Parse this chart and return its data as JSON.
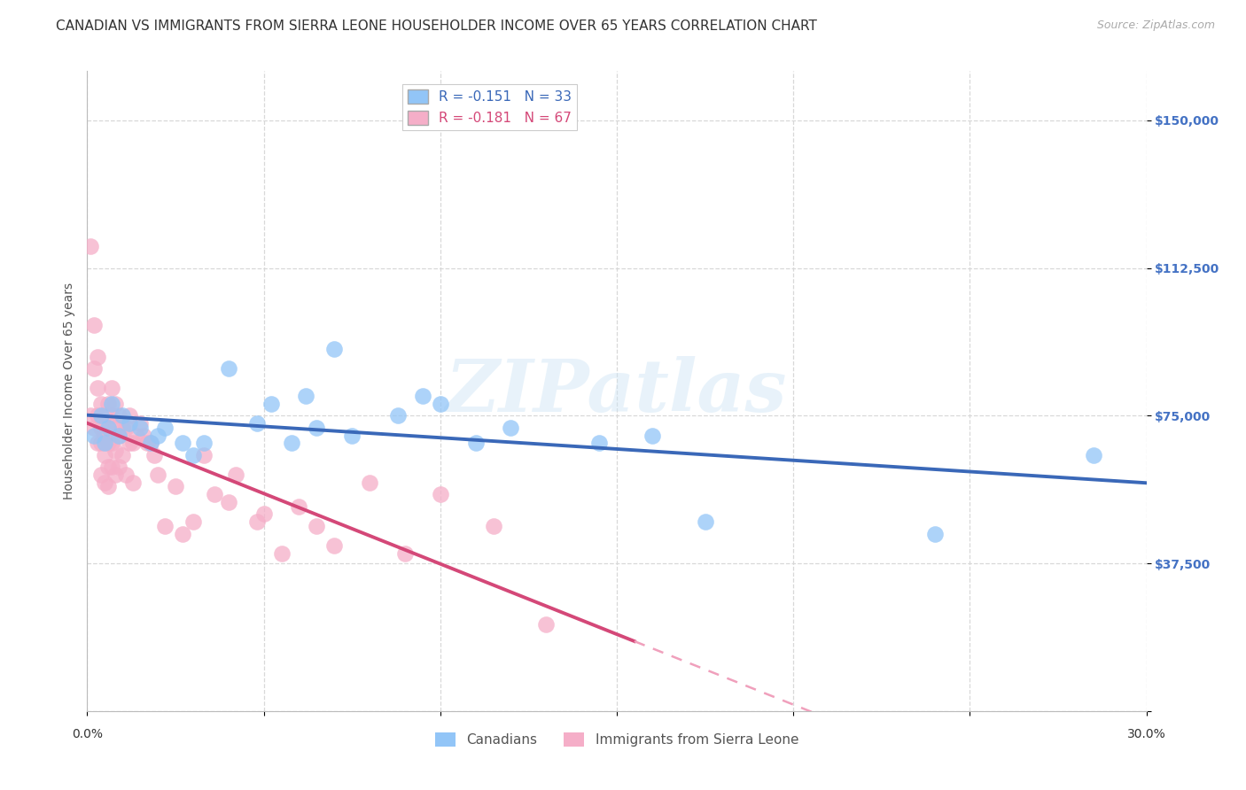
{
  "title": "CANADIAN VS IMMIGRANTS FROM SIERRA LEONE HOUSEHOLDER INCOME OVER 65 YEARS CORRELATION CHART",
  "source": "Source: ZipAtlas.com",
  "ylabel": "Householder Income Over 65 years",
  "xlim": [
    0.0,
    0.3
  ],
  "ylim": [
    0,
    162500
  ],
  "yticks": [
    0,
    37500,
    75000,
    112500,
    150000
  ],
  "ytick_labels": [
    "",
    "$37,500",
    "$75,000",
    "$112,500",
    "$150,000"
  ],
  "background_color": "#ffffff",
  "grid_color": "#d8d8d8",
  "canadians_color": "#92c5f7",
  "sierra_leone_color": "#f5aec8",
  "trend_canadian_color": "#3a68b8",
  "trend_sierra_leone_solid_color": "#d44878",
  "trend_sierra_leone_dashed_color": "#f0a0bc",
  "R_canadian": -0.151,
  "N_canadian": 33,
  "R_sierra_leone": -0.181,
  "N_sierra_leone": 67,
  "canadians_x": [
    0.002,
    0.004,
    0.005,
    0.006,
    0.007,
    0.009,
    0.01,
    0.012,
    0.015,
    0.018,
    0.02,
    0.022,
    0.027,
    0.03,
    0.033,
    0.04,
    0.048,
    0.052,
    0.058,
    0.062,
    0.065,
    0.07,
    0.075,
    0.088,
    0.095,
    0.1,
    0.11,
    0.12,
    0.145,
    0.16,
    0.175,
    0.24,
    0.285
  ],
  "canadians_y": [
    70000,
    75000,
    68000,
    72000,
    78000,
    70000,
    75000,
    73000,
    72000,
    68000,
    70000,
    72000,
    68000,
    65000,
    68000,
    87000,
    73000,
    78000,
    68000,
    80000,
    72000,
    92000,
    70000,
    75000,
    80000,
    78000,
    68000,
    72000,
    68000,
    70000,
    48000,
    45000,
    65000
  ],
  "sierra_leone_x": [
    0.001,
    0.001,
    0.002,
    0.002,
    0.002,
    0.003,
    0.003,
    0.003,
    0.003,
    0.004,
    0.004,
    0.004,
    0.004,
    0.005,
    0.005,
    0.005,
    0.005,
    0.006,
    0.006,
    0.006,
    0.006,
    0.006,
    0.007,
    0.007,
    0.007,
    0.007,
    0.008,
    0.008,
    0.008,
    0.008,
    0.009,
    0.009,
    0.009,
    0.01,
    0.01,
    0.011,
    0.011,
    0.012,
    0.012,
    0.013,
    0.013,
    0.014,
    0.015,
    0.016,
    0.017,
    0.018,
    0.019,
    0.02,
    0.022,
    0.025,
    0.027,
    0.03,
    0.033,
    0.036,
    0.04,
    0.042,
    0.048,
    0.05,
    0.055,
    0.06,
    0.065,
    0.07,
    0.08,
    0.09,
    0.1,
    0.115,
    0.13
  ],
  "sierra_leone_y": [
    118000,
    75000,
    98000,
    87000,
    72000,
    90000,
    82000,
    75000,
    68000,
    78000,
    72000,
    68000,
    60000,
    75000,
    70000,
    65000,
    58000,
    78000,
    72000,
    68000,
    62000,
    57000,
    82000,
    75000,
    68000,
    62000,
    78000,
    72000,
    66000,
    60000,
    75000,
    70000,
    62000,
    72000,
    65000,
    72000,
    60000,
    75000,
    68000,
    68000,
    58000,
    70000,
    73000,
    70000,
    68000,
    68000,
    65000,
    60000,
    47000,
    57000,
    45000,
    48000,
    65000,
    55000,
    53000,
    60000,
    48000,
    50000,
    40000,
    52000,
    47000,
    42000,
    58000,
    40000,
    55000,
    47000,
    22000
  ],
  "sl_trend_x_end": 0.155,
  "watermark_text": "ZIPatlas",
  "title_fontsize": 11,
  "axis_label_fontsize": 10,
  "tick_fontsize": 10,
  "legend_fontsize": 11,
  "source_fontsize": 9
}
